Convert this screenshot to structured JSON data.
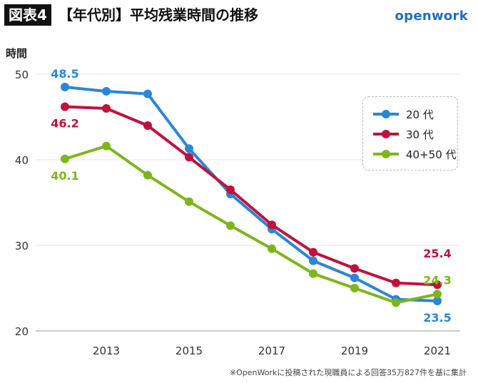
{
  "header": {
    "badge": "図表4",
    "title": "【年代別】平均残業時間の推移",
    "logo": "openwork"
  },
  "footnote": "※OpenWorkに投稿された現職員による回答35万827件を基に集計",
  "chart_data": {
    "type": "line",
    "title": "【年代別】平均残業時間の推移",
    "ylabel": "時間",
    "xlabel": "",
    "ylim": [
      20,
      50
    ],
    "yticks": [
      20,
      30,
      40,
      50
    ],
    "xlim": [
      2012,
      2021
    ],
    "xticks": [
      2013,
      2015,
      2017,
      2019,
      2021
    ],
    "x": [
      2012,
      2013,
      2014,
      2015,
      2016,
      2017,
      2018,
      2019,
      2020,
      2021
    ],
    "legend_position": "top-right",
    "series": [
      {
        "name": "20 代",
        "color": "#2a86d8",
        "values": [
          48.5,
          48.0,
          47.7,
          41.3,
          36.0,
          31.9,
          28.2,
          26.2,
          23.7,
          23.5
        ],
        "labels": [
          {
            "index": 0,
            "text": "48.5"
          },
          {
            "index": 9,
            "text": "23.5"
          }
        ]
      },
      {
        "name": "30 代",
        "color": "#c1123c",
        "values": [
          46.2,
          46.0,
          44.0,
          40.3,
          36.5,
          32.4,
          29.2,
          27.3,
          25.6,
          25.4
        ],
        "labels": [
          {
            "index": 0,
            "text": "46.2"
          },
          {
            "index": 9,
            "text": "25.4"
          }
        ]
      },
      {
        "name": "40+50 代",
        "color": "#7db61c",
        "values": [
          40.1,
          41.6,
          38.2,
          35.1,
          32.3,
          29.6,
          26.7,
          25.0,
          23.3,
          24.3
        ],
        "labels": [
          {
            "index": 0,
            "text": "40.1"
          },
          {
            "index": 9,
            "text": "24.3"
          }
        ]
      }
    ]
  }
}
